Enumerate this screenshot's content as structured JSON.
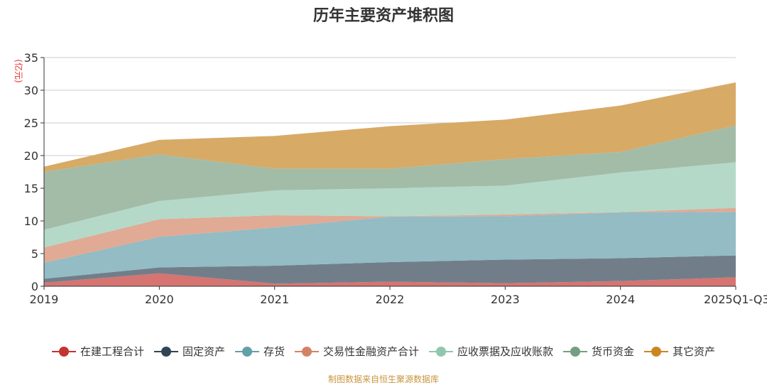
{
  "chart_data": {
    "type": "area",
    "stacked": true,
    "title": "历年主要资产堆积图",
    "ylabel": "(亿元)",
    "xlabel": "",
    "ylim": [
      0,
      35
    ],
    "yticks": [
      0,
      5,
      10,
      15,
      20,
      25,
      30,
      35
    ],
    "grid": true,
    "legend_position": "bottom",
    "categories": [
      "2019",
      "2020",
      "2021",
      "2022",
      "2023",
      "2024",
      "2025Q1-Q3"
    ],
    "series": [
      {
        "name": "在建工程合计",
        "color": "#c23531",
        "fill": "#d4706c",
        "values": [
          0.54,
          1.98,
          0.4,
          0.7,
          0.47,
          0.8,
          1.37
        ]
      },
      {
        "name": "固定资产",
        "color": "#2f4554",
        "fill": "#6c7a86",
        "values": [
          0.61,
          0.9,
          2.75,
          3.0,
          3.6,
          3.5,
          3.35
        ]
      },
      {
        "name": "存货",
        "color": "#61a0a8",
        "fill": "#8fbac2",
        "values": [
          2.45,
          4.68,
          5.85,
          6.95,
          6.63,
          7.0,
          6.68
        ]
      },
      {
        "name": "交易性金融资产合计",
        "color": "#d48265",
        "fill": "#dfa792",
        "values": [
          2.34,
          2.7,
          1.87,
          0.05,
          0.28,
          0.05,
          0.6
        ]
      },
      {
        "name": "应收票据及应收账款",
        "color": "#91c7ae",
        "fill": "#b2d8c6",
        "values": [
          2.7,
          2.78,
          3.8,
          4.3,
          4.42,
          6.05,
          6.97
        ]
      },
      {
        "name": "货币资金",
        "color": "#749f83",
        "fill": "#9fbaa5",
        "values": [
          8.86,
          7.13,
          3.33,
          3.0,
          4.05,
          3.15,
          5.63
        ]
      },
      {
        "name": "其它资产",
        "color": "#ca8622",
        "fill": "#d6a761",
        "values": [
          0.8,
          2.23,
          5.0,
          6.5,
          6.05,
          7.1,
          6.6
        ]
      }
    ]
  },
  "footer": {
    "source": "制图数据来自恒生聚源数据库"
  }
}
